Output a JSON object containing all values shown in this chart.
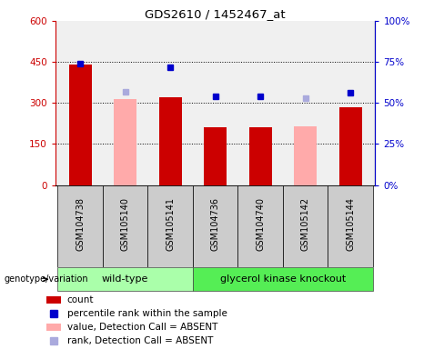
{
  "title": "GDS2610 / 1452467_at",
  "samples": [
    "GSM104738",
    "GSM105140",
    "GSM105141",
    "GSM104736",
    "GSM104740",
    "GSM105142",
    "GSM105144"
  ],
  "count_values": [
    440,
    null,
    320,
    210,
    210,
    null,
    285
  ],
  "count_absent_values": [
    null,
    315,
    null,
    null,
    null,
    215,
    null
  ],
  "rank_values": [
    74,
    null,
    72,
    54,
    54,
    null,
    56
  ],
  "rank_absent_values": [
    null,
    57,
    null,
    null,
    null,
    53,
    null
  ],
  "ylim_left": [
    0,
    600
  ],
  "ylim_right": [
    0,
    100
  ],
  "yticks_left": [
    0,
    150,
    300,
    450,
    600
  ],
  "yticks_right": [
    0,
    25,
    50,
    75,
    100
  ],
  "ytick_labels_left": [
    "0",
    "150",
    "300",
    "450",
    "600"
  ],
  "ytick_labels_right": [
    "0%",
    "25%",
    "50%",
    "75%",
    "100%"
  ],
  "color_count": "#cc0000",
  "color_rank": "#0000cc",
  "color_absent_count": "#ffaaaa",
  "color_absent_rank": "#aaaadd",
  "wt_color": "#aaffaa",
  "gk_color": "#55ee55",
  "legend_items": [
    {
      "label": "count",
      "color": "#cc0000",
      "type": "bar"
    },
    {
      "label": "percentile rank within the sample",
      "color": "#0000cc",
      "type": "square"
    },
    {
      "label": "value, Detection Call = ABSENT",
      "color": "#ffaaaa",
      "type": "bar"
    },
    {
      "label": "rank, Detection Call = ABSENT",
      "color": "#aaaadd",
      "type": "square"
    }
  ],
  "bar_width": 0.5,
  "label_box_color": "#cccccc",
  "grid_lines": [
    150,
    300,
    450
  ],
  "wt_samples": [
    0,
    1,
    2
  ],
  "gk_samples": [
    3,
    4,
    5,
    6
  ]
}
